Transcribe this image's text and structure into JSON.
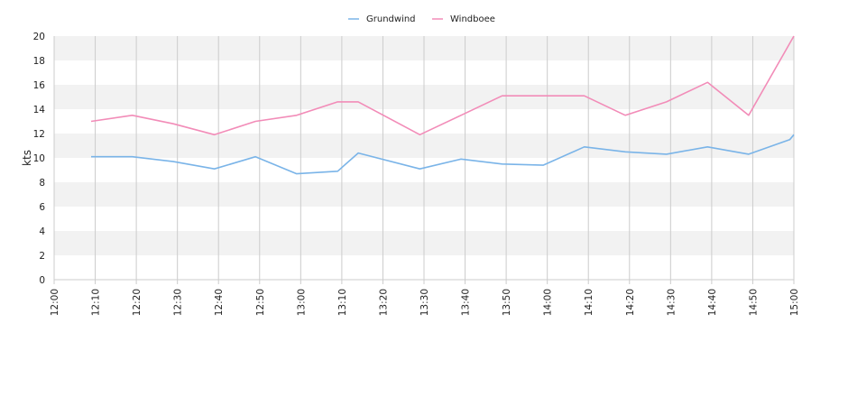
{
  "chart_data": {
    "type": "line",
    "ylabel": "kts",
    "xlabel": "",
    "ylim": [
      0,
      20
    ],
    "y_ticks": [
      "0",
      "2",
      "4",
      "6",
      "8",
      "10",
      "12",
      "14",
      "16",
      "18",
      "20"
    ],
    "x_tick_labels": [
      "12:00",
      "12:10",
      "12:20",
      "12:30",
      "12:40",
      "12:50",
      "13:00",
      "13:10",
      "13:20",
      "13:30",
      "13:40",
      "13:50",
      "14:00",
      "14:10",
      "14:20",
      "14:30",
      "14:40",
      "14:50",
      "15:00"
    ],
    "x_range": [
      "12:00",
      "15:00"
    ],
    "grid": true,
    "legend_position": "top-center",
    "series": [
      {
        "name": "Grundwind",
        "color": "#7ab4e8",
        "points": [
          [
            "12:09",
            10.1
          ],
          [
            "12:19",
            10.1
          ],
          [
            "12:29",
            9.7
          ],
          [
            "12:39",
            9.1
          ],
          [
            "12:49",
            10.1
          ],
          [
            "12:59",
            8.7
          ],
          [
            "13:09",
            8.9
          ],
          [
            "13:14",
            10.4
          ],
          [
            "13:29",
            9.1
          ],
          [
            "13:39",
            9.9
          ],
          [
            "13:49",
            9.5
          ],
          [
            "13:59",
            9.4
          ],
          [
            "14:09",
            10.9
          ],
          [
            "14:19",
            10.5
          ],
          [
            "14:29",
            10.3
          ],
          [
            "14:39",
            10.9
          ],
          [
            "14:49",
            10.3
          ],
          [
            "14:59",
            11.5
          ],
          [
            "15:00",
            11.9
          ]
        ]
      },
      {
        "name": "Windboee",
        "color": "#f28cb8",
        "points": [
          [
            "12:09",
            13.0
          ],
          [
            "12:19",
            13.5
          ],
          [
            "12:29",
            12.8
          ],
          [
            "12:39",
            11.9
          ],
          [
            "12:49",
            13.0
          ],
          [
            "12:59",
            13.5
          ],
          [
            "13:09",
            14.6
          ],
          [
            "13:14",
            14.6
          ],
          [
            "13:29",
            11.9
          ],
          [
            "13:39",
            13.5
          ],
          [
            "13:49",
            15.1
          ],
          [
            "13:59",
            15.1
          ],
          [
            "14:09",
            15.1
          ],
          [
            "14:19",
            13.5
          ],
          [
            "14:29",
            14.6
          ],
          [
            "14:39",
            16.2
          ],
          [
            "14:49",
            13.5
          ],
          [
            "15:00",
            20.0
          ]
        ]
      }
    ]
  }
}
